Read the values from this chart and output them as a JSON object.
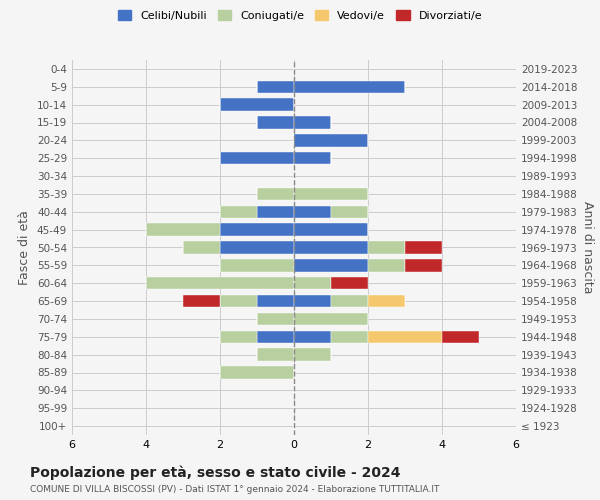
{
  "age_groups": [
    "100+",
    "95-99",
    "90-94",
    "85-89",
    "80-84",
    "75-79",
    "70-74",
    "65-69",
    "60-64",
    "55-59",
    "50-54",
    "45-49",
    "40-44",
    "35-39",
    "30-34",
    "25-29",
    "20-24",
    "15-19",
    "10-14",
    "5-9",
    "0-4"
  ],
  "birth_years": [
    "≤ 1923",
    "1924-1928",
    "1929-1933",
    "1934-1938",
    "1939-1943",
    "1944-1948",
    "1949-1953",
    "1954-1958",
    "1959-1963",
    "1964-1968",
    "1969-1973",
    "1974-1978",
    "1979-1983",
    "1984-1988",
    "1989-1993",
    "1994-1998",
    "1999-2003",
    "2004-2008",
    "2009-2013",
    "2014-2018",
    "2019-2023"
  ],
  "colors": {
    "celibi": "#4472c4",
    "coniugati": "#b8cfa0",
    "vedovi": "#f5c86e",
    "divorziati": "#c0282a"
  },
  "males": {
    "celibi": [
      0,
      0,
      0,
      0,
      0,
      1,
      0,
      1,
      0,
      0,
      2,
      2,
      1,
      0,
      0,
      2,
      0,
      1,
      2,
      1,
      0
    ],
    "coniugati": [
      0,
      0,
      0,
      2,
      1,
      1,
      1,
      1,
      4,
      2,
      1,
      2,
      1,
      1,
      0,
      0,
      0,
      0,
      0,
      0,
      0
    ],
    "vedovi": [
      0,
      0,
      0,
      0,
      0,
      0,
      0,
      0,
      0,
      0,
      0,
      0,
      0,
      0,
      0,
      0,
      0,
      0,
      0,
      0,
      0
    ],
    "divorziati": [
      0,
      0,
      0,
      0,
      0,
      0,
      0,
      1,
      0,
      0,
      0,
      0,
      0,
      0,
      0,
      0,
      0,
      0,
      0,
      0,
      0
    ]
  },
  "females": {
    "celibi": [
      0,
      0,
      0,
      0,
      0,
      1,
      0,
      1,
      0,
      2,
      2,
      2,
      1,
      0,
      0,
      1,
      2,
      1,
      0,
      3,
      0
    ],
    "coniugati": [
      0,
      0,
      0,
      0,
      1,
      1,
      2,
      1,
      1,
      1,
      1,
      0,
      1,
      2,
      0,
      0,
      0,
      0,
      0,
      0,
      0
    ],
    "vedovi": [
      0,
      0,
      0,
      0,
      0,
      2,
      0,
      1,
      0,
      0,
      0,
      0,
      0,
      0,
      0,
      0,
      0,
      0,
      0,
      0,
      0
    ],
    "divorziati": [
      0,
      0,
      0,
      0,
      0,
      1,
      0,
      0,
      1,
      1,
      1,
      0,
      0,
      0,
      0,
      0,
      0,
      0,
      0,
      0,
      0
    ]
  },
  "xlim": 6,
  "title": "Popolazione per età, sesso e stato civile - 2024",
  "subtitle": "COMUNE DI VILLA BISCOSSI (PV) - Dati ISTAT 1° gennaio 2024 - Elaborazione TUTTITALIA.IT",
  "ylabel_left": "Fasce di età",
  "ylabel_right": "Anni di nascita",
  "bg_color": "#f5f5f5",
  "grid_color": "#cccccc"
}
